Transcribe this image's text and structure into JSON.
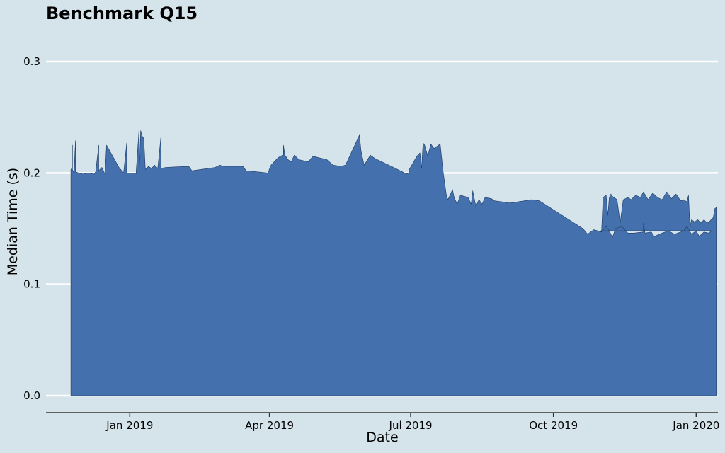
{
  "chart_data": {
    "type": "area",
    "title": "Benchmark Q15",
    "xlabel": "Date",
    "ylabel": "Median Time (s)",
    "ylim": [
      0,
      0.3
    ],
    "xlim": [
      "2018-11-08",
      "2020-01-15"
    ],
    "yticks": [
      {
        "value": 0.0,
        "label": "0.0"
      },
      {
        "value": 0.1,
        "label": "0.1"
      },
      {
        "value": 0.2,
        "label": "0.2"
      },
      {
        "value": 0.3,
        "label": "0.3"
      }
    ],
    "xticks": [
      {
        "value": "2019-01-01",
        "label": "Jan 2019"
      },
      {
        "value": "2019-04-01",
        "label": "Apr 2019"
      },
      {
        "value": "2019-07-01",
        "label": "Jul 2019"
      },
      {
        "value": "2019-10-01",
        "label": "Oct 2019"
      },
      {
        "value": "2020-01-01",
        "label": "Jan 2020"
      }
    ],
    "grid": "horizontal",
    "colors": {
      "background": "#d5e4eb",
      "fill": "#4470ad",
      "edge": "#1f3a5f",
      "grid": "#ffffff",
      "axis": "#333333"
    },
    "series": [
      {
        "points": [
          [
            "2018-11-24",
            0.2
          ],
          [
            "2018-11-24",
            0.203
          ],
          [
            "2018-11-25",
            0.205
          ],
          [
            "2018-11-25",
            0.225
          ],
          [
            "2018-11-25",
            0.203
          ],
          [
            "2018-11-26",
            0.2
          ],
          [
            "2018-11-27",
            0.229
          ],
          [
            "2018-11-27",
            0.201
          ],
          [
            "2018-11-29",
            0.2
          ],
          [
            "2018-12-02",
            0.199
          ],
          [
            "2018-12-05",
            0.2
          ],
          [
            "2018-12-09",
            0.199
          ],
          [
            "2018-12-10",
            0.201
          ],
          [
            "2018-12-12",
            0.225
          ],
          [
            "2018-12-12",
            0.202
          ],
          [
            "2018-12-14",
            0.205
          ],
          [
            "2018-12-16",
            0.199
          ],
          [
            "2018-12-17",
            0.225
          ],
          [
            "2018-12-21",
            0.215
          ],
          [
            "2018-12-25",
            0.205
          ],
          [
            "2018-12-28",
            0.2
          ],
          [
            "2018-12-30",
            0.227
          ],
          [
            "2018-12-30",
            0.2
          ],
          [
            "2019-01-03",
            0.2
          ],
          [
            "2019-01-05",
            0.199
          ],
          [
            "2019-01-07",
            0.24
          ],
          [
            "2019-01-07",
            0.2
          ],
          [
            "2019-01-08",
            0.238
          ],
          [
            "2019-01-09",
            0.233
          ],
          [
            "2019-01-10",
            0.231
          ],
          [
            "2019-01-11",
            0.203
          ],
          [
            "2019-01-13",
            0.206
          ],
          [
            "2019-01-15",
            0.204
          ],
          [
            "2019-01-17",
            0.207
          ],
          [
            "2019-01-19",
            0.204
          ],
          [
            "2019-01-21",
            0.232
          ],
          [
            "2019-01-21",
            0.204
          ],
          [
            "2019-01-24",
            0.205
          ],
          [
            "2019-02-08",
            0.206
          ],
          [
            "2019-02-10",
            0.202
          ],
          [
            "2019-02-25",
            0.205
          ],
          [
            "2019-02-28",
            0.207
          ],
          [
            "2019-03-02",
            0.206
          ],
          [
            "2019-03-15",
            0.206
          ],
          [
            "2019-03-17",
            0.202
          ],
          [
            "2019-03-31",
            0.2
          ],
          [
            "2019-04-02",
            0.207
          ],
          [
            "2019-04-06",
            0.213
          ],
          [
            "2019-04-08",
            0.215
          ],
          [
            "2019-04-10",
            0.216
          ],
          [
            "2019-04-10",
            0.225
          ],
          [
            "2019-04-11",
            0.216
          ],
          [
            "2019-04-13",
            0.212
          ],
          [
            "2019-04-15",
            0.21
          ],
          [
            "2019-04-17",
            0.216
          ],
          [
            "2019-04-20",
            0.212
          ],
          [
            "2019-04-26",
            0.21
          ],
          [
            "2019-04-29",
            0.215
          ],
          [
            "2019-05-08",
            0.212
          ],
          [
            "2019-05-12",
            0.207
          ],
          [
            "2019-05-17",
            0.206
          ],
          [
            "2019-05-20",
            0.207
          ],
          [
            "2019-05-29",
            0.234
          ],
          [
            "2019-05-30",
            0.22
          ],
          [
            "2019-06-01",
            0.207
          ],
          [
            "2019-06-05",
            0.216
          ],
          [
            "2019-06-08",
            0.213
          ],
          [
            "2019-06-20",
            0.205
          ],
          [
            "2019-06-27",
            0.2
          ],
          [
            "2019-06-30",
            0.199
          ],
          [
            "2019-06-30",
            0.203
          ],
          [
            "2019-07-05",
            0.215
          ],
          [
            "2019-07-07",
            0.218
          ],
          [
            "2019-07-08",
            0.204
          ],
          [
            "2019-07-09",
            0.227
          ],
          [
            "2019-07-10",
            0.225
          ],
          [
            "2019-07-12",
            0.215
          ],
          [
            "2019-07-14",
            0.226
          ],
          [
            "2019-07-16",
            0.222
          ],
          [
            "2019-07-18",
            0.224
          ],
          [
            "2019-07-20",
            0.226
          ],
          [
            "2019-07-22",
            0.2
          ],
          [
            "2019-07-24",
            0.18
          ],
          [
            "2019-07-25",
            0.176
          ],
          [
            "2019-07-28",
            0.185
          ],
          [
            "2019-07-29",
            0.178
          ],
          [
            "2019-07-31",
            0.172
          ],
          [
            "2019-08-02",
            0.18
          ],
          [
            "2019-08-07",
            0.178
          ],
          [
            "2019-08-09",
            0.172
          ],
          [
            "2019-08-10",
            0.184
          ],
          [
            "2019-08-12",
            0.17
          ],
          [
            "2019-08-14",
            0.176
          ],
          [
            "2019-08-16",
            0.172
          ],
          [
            "2019-08-18",
            0.178
          ],
          [
            "2019-08-22",
            0.177
          ],
          [
            "2019-08-24",
            0.175
          ],
          [
            "2019-08-29",
            0.174
          ],
          [
            "2019-09-03",
            0.173
          ],
          [
            "2019-09-17",
            0.176
          ],
          [
            "2019-09-22",
            0.175
          ],
          [
            "2019-10-20",
            0.15
          ],
          [
            "2019-10-23",
            0.145
          ],
          [
            "2019-10-27",
            0.149
          ],
          [
            "2019-11-01",
            0.147
          ],
          [
            "2019-11-04",
            0.152
          ],
          [
            "2019-11-06",
            0.148
          ],
          [
            "2019-11-08",
            0.142
          ],
          [
            "2019-11-10",
            0.15
          ],
          [
            "2019-11-14",
            0.152
          ],
          [
            "2019-11-18",
            0.146
          ],
          [
            "2019-11-22",
            0.146
          ],
          [
            "2019-11-28",
            0.147
          ],
          [
            "2019-11-28",
            0.155
          ],
          [
            "2019-11-29",
            0.146
          ],
          [
            "2019-12-03",
            0.147
          ],
          [
            "2019-12-05",
            0.143
          ],
          [
            "2019-12-10",
            0.146
          ],
          [
            "2019-12-14",
            0.148
          ],
          [
            "2019-12-18",
            0.145
          ],
          [
            "2019-12-24",
            0.148
          ],
          [
            "2019-12-26",
            0.152
          ],
          [
            "2019-12-29",
            0.145
          ],
          [
            "2020-01-01",
            0.148
          ],
          [
            "2020-01-03",
            0.143
          ],
          [
            "2020-01-06",
            0.147
          ],
          [
            "2020-01-09",
            0.146
          ],
          [
            "2020-01-11",
            0.148
          ],
          [
            "2019-10-31",
            0.148
          ],
          [
            "2019-11-01",
            0.147
          ],
          [
            "2019-11-02",
            0.178
          ],
          [
            "2019-11-04",
            0.18
          ],
          [
            "2019-11-05",
            0.162
          ],
          [
            "2019-11-06",
            0.178
          ],
          [
            "2019-11-07",
            0.181
          ],
          [
            "2019-11-08",
            0.179
          ],
          [
            "2019-11-11",
            0.176
          ],
          [
            "2019-11-13",
            0.155
          ],
          [
            "2019-11-15",
            0.176
          ],
          [
            "2019-11-18",
            0.178
          ],
          [
            "2019-11-20",
            0.176
          ],
          [
            "2019-11-23",
            0.18
          ],
          [
            "2019-11-26",
            0.178
          ],
          [
            "2019-11-28",
            0.183
          ],
          [
            "2019-12-01",
            0.176
          ],
          [
            "2019-12-04",
            0.182
          ],
          [
            "2019-12-07",
            0.178
          ],
          [
            "2019-12-10",
            0.176
          ],
          [
            "2019-12-13",
            0.183
          ],
          [
            "2019-12-16",
            0.177
          ],
          [
            "2019-12-19",
            0.181
          ],
          [
            "2019-12-22",
            0.175
          ],
          [
            "2019-12-24",
            0.176
          ],
          [
            "2019-12-26",
            0.174
          ],
          [
            "2019-12-27",
            0.18
          ],
          [
            "2019-12-28",
            0.152
          ],
          [
            "2019-12-29",
            0.158
          ],
          [
            "2019-12-31",
            0.156
          ],
          [
            "2020-01-02",
            0.158
          ],
          [
            "2020-01-04",
            0.155
          ],
          [
            "2020-01-06",
            0.158
          ],
          [
            "2020-01-08",
            0.155
          ],
          [
            "2020-01-10",
            0.157
          ],
          [
            "2020-01-12",
            0.16
          ],
          [
            "2020-01-13",
            0.168
          ],
          [
            "2020-01-14",
            0.169
          ],
          [
            "2020-01-14",
            0.16
          ]
        ]
      }
    ]
  }
}
